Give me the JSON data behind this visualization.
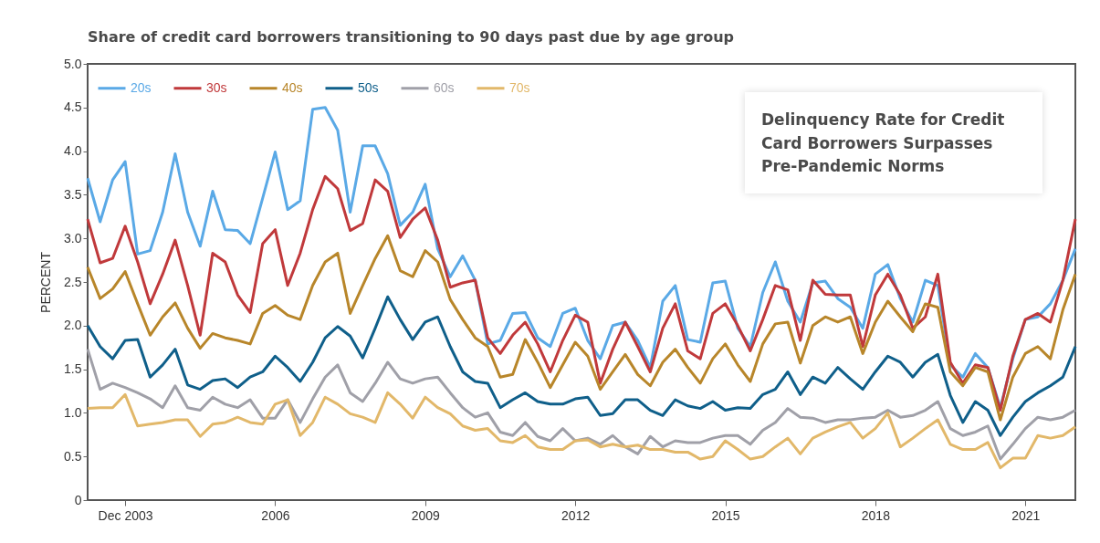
{
  "chart_data": {
    "type": "line",
    "title": "Share of credit card borrowers transitioning to 90 days past due by age group",
    "ylabel": "PERCENT",
    "legend": "top left",
    "xlim": [
      2002.25,
      2022.0
    ],
    "xticks": [
      {
        "value": 2003,
        "label": "Dec 2003"
      },
      2006,
      2009,
      2012,
      2015,
      2018,
      2021
    ],
    "ylim": [
      0,
      5
    ],
    "yticks": [
      0,
      0.5,
      {
        "value": 1,
        "label": "1.0"
      },
      1.5,
      {
        "value": 2,
        "label": "2.0"
      },
      2.5,
      {
        "value": 3,
        "label": "3.0"
      },
      3.5,
      {
        "value": 4,
        "label": "4.0"
      },
      4.5,
      {
        "value": 5,
        "label": "5.0"
      }
    ],
    "x": [
      2002.25,
      2002.5,
      2002.75,
      2003,
      2003.25,
      2003.5,
      2003.75,
      2004,
      2004.25,
      2004.5,
      2004.75,
      2005,
      2005.25,
      2005.5,
      2005.75,
      2006,
      2006.25,
      2006.5,
      2006.75,
      2007,
      2007.25,
      2007.5,
      2007.75,
      2008,
      2008.25,
      2008.5,
      2008.75,
      2009,
      2009.25,
      2009.5,
      2009.75,
      2010,
      2010.25,
      2010.5,
      2010.75,
      2011,
      2011.25,
      2011.5,
      2011.75,
      2012,
      2012.25,
      2012.5,
      2012.75,
      2013,
      2013.25,
      2013.5,
      2013.75,
      2014,
      2014.25,
      2014.5,
      2014.75,
      2015,
      2015.25,
      2015.5,
      2015.75,
      2016,
      2016.25,
      2016.5,
      2016.75,
      2017,
      2017.25,
      2017.5,
      2017.75,
      2018,
      2018.25,
      2018.5,
      2018.75,
      2019,
      2019.25,
      2019.5,
      2019.75,
      2020,
      2020.25,
      2020.5,
      2020.75,
      2021,
      2021.25,
      2021.5,
      2021.75,
      2022
    ],
    "series": [
      {
        "name": "20s",
        "color": "#5aa9e6",
        "values": [
          3.69,
          3.19,
          3.67,
          3.88,
          2.82,
          2.86,
          3.3,
          3.97,
          3.3,
          2.91,
          3.54,
          3.1,
          3.09,
          2.94,
          3.46,
          3.99,
          3.33,
          3.43,
          4.48,
          4.5,
          4.24,
          3.3,
          4.06,
          4.06,
          3.74,
          3.15,
          3.3,
          3.62,
          2.88,
          2.56,
          2.8,
          2.52,
          1.79,
          1.83,
          2.14,
          2.15,
          1.86,
          1.76,
          2.14,
          2.2,
          1.83,
          1.62,
          2.0,
          2.04,
          1.83,
          1.52,
          2.28,
          2.46,
          1.84,
          1.81,
          2.49,
          2.51,
          1.97,
          1.76,
          2.38,
          2.73,
          2.28,
          2.04,
          2.49,
          2.51,
          2.31,
          2.21,
          1.97,
          2.59,
          2.7,
          2.31,
          2.04,
          2.52,
          2.46,
          1.55,
          1.41,
          1.68,
          1.52,
          1.06,
          1.62,
          2.07,
          2.1,
          2.25,
          2.52,
          2.88
        ]
      },
      {
        "name": "30s",
        "color": "#c0393b",
        "values": [
          3.22,
          2.72,
          2.77,
          3.14,
          2.73,
          2.25,
          2.59,
          2.98,
          2.46,
          1.89,
          2.83,
          2.73,
          2.35,
          2.15,
          2.94,
          3.1,
          2.46,
          2.83,
          3.33,
          3.71,
          3.57,
          3.09,
          3.17,
          3.67,
          3.54,
          3.01,
          3.22,
          3.35,
          2.98,
          2.44,
          2.49,
          2.52,
          1.86,
          1.68,
          1.89,
          2.04,
          1.79,
          1.47,
          1.83,
          2.12,
          2.04,
          1.34,
          1.73,
          2.04,
          1.76,
          1.47,
          1.97,
          2.25,
          1.71,
          1.62,
          2.14,
          2.25,
          2.0,
          1.71,
          2.07,
          2.46,
          2.41,
          1.83,
          2.52,
          2.36,
          2.35,
          2.35,
          1.76,
          2.35,
          2.59,
          2.35,
          1.97,
          2.1,
          2.59,
          1.58,
          1.34,
          1.55,
          1.52,
          1.03,
          1.65,
          2.07,
          2.14,
          2.04,
          2.52,
          3.22
        ]
      },
      {
        "name": "40s",
        "color": "#b8862a",
        "values": [
          2.67,
          2.31,
          2.42,
          2.62,
          2.25,
          1.89,
          2.1,
          2.26,
          1.97,
          1.74,
          1.91,
          1.86,
          1.83,
          1.79,
          2.14,
          2.23,
          2.12,
          2.07,
          2.46,
          2.73,
          2.83,
          2.14,
          2.46,
          2.77,
          3.03,
          2.63,
          2.56,
          2.86,
          2.73,
          2.3,
          2.07,
          1.86,
          1.76,
          1.41,
          1.44,
          1.84,
          1.58,
          1.29,
          1.55,
          1.81,
          1.65,
          1.27,
          1.47,
          1.67,
          1.44,
          1.31,
          1.58,
          1.73,
          1.52,
          1.34,
          1.62,
          1.79,
          1.55,
          1.36,
          1.79,
          2.02,
          2.04,
          1.57,
          2.0,
          2.1,
          2.04,
          2.1,
          1.68,
          2.04,
          2.28,
          2.1,
          1.93,
          2.25,
          2.21,
          1.47,
          1.31,
          1.52,
          1.47,
          0.92,
          1.41,
          1.68,
          1.76,
          1.62,
          2.18,
          2.59
        ]
      },
      {
        "name": "50s",
        "color": "#0f5f8a",
        "values": [
          2.0,
          1.76,
          1.62,
          1.83,
          1.84,
          1.41,
          1.55,
          1.73,
          1.32,
          1.27,
          1.37,
          1.39,
          1.29,
          1.41,
          1.47,
          1.65,
          1.52,
          1.36,
          1.58,
          1.86,
          1.99,
          1.88,
          1.63,
          1.97,
          2.33,
          2.07,
          1.84,
          2.04,
          2.1,
          1.76,
          1.47,
          1.36,
          1.34,
          1.06,
          1.15,
          1.23,
          1.13,
          1.1,
          1.1,
          1.16,
          1.18,
          0.97,
          0.99,
          1.15,
          1.15,
          1.03,
          0.97,
          1.15,
          1.08,
          1.05,
          1.13,
          1.03,
          1.06,
          1.05,
          1.21,
          1.27,
          1.47,
          1.21,
          1.41,
          1.34,
          1.52,
          1.39,
          1.27,
          1.47,
          1.65,
          1.58,
          1.41,
          1.58,
          1.67,
          1.2,
          0.89,
          1.13,
          1.03,
          0.74,
          0.95,
          1.13,
          1.23,
          1.31,
          1.41,
          1.76
        ]
      },
      {
        "name": "60s",
        "color": "#a0a0a8",
        "values": [
          1.73,
          1.27,
          1.34,
          1.29,
          1.23,
          1.16,
          1.06,
          1.31,
          1.06,
          1.03,
          1.18,
          1.1,
          1.06,
          1.15,
          0.94,
          0.94,
          1.15,
          0.89,
          1.16,
          1.41,
          1.55,
          1.23,
          1.13,
          1.34,
          1.58,
          1.39,
          1.34,
          1.39,
          1.41,
          1.23,
          1.06,
          0.95,
          1.0,
          0.78,
          0.74,
          0.89,
          0.73,
          0.68,
          0.82,
          0.68,
          0.71,
          0.64,
          0.74,
          0.61,
          0.53,
          0.73,
          0.61,
          0.68,
          0.66,
          0.66,
          0.71,
          0.74,
          0.74,
          0.64,
          0.8,
          0.89,
          1.05,
          0.95,
          0.94,
          0.89,
          0.92,
          0.92,
          0.94,
          0.95,
          1.03,
          0.95,
          0.97,
          1.03,
          1.13,
          0.82,
          0.74,
          0.78,
          0.85,
          0.47,
          0.64,
          0.82,
          0.95,
          0.92,
          0.95,
          1.03
        ]
      },
      {
        "name": "70s",
        "color": "#e2b86a",
        "values": [
          1.05,
          1.06,
          1.06,
          1.21,
          0.85,
          0.87,
          0.89,
          0.92,
          0.92,
          0.73,
          0.87,
          0.89,
          0.95,
          0.89,
          0.87,
          1.1,
          1.15,
          0.74,
          0.89,
          1.18,
          1.1,
          0.99,
          0.95,
          0.89,
          1.23,
          1.1,
          0.94,
          1.18,
          1.06,
          0.99,
          0.85,
          0.8,
          0.82,
          0.68,
          0.66,
          0.74,
          0.61,
          0.58,
          0.58,
          0.68,
          0.69,
          0.61,
          0.64,
          0.61,
          0.63,
          0.58,
          0.58,
          0.55,
          0.55,
          0.47,
          0.5,
          0.68,
          0.58,
          0.47,
          0.5,
          0.61,
          0.71,
          0.53,
          0.71,
          0.78,
          0.84,
          0.89,
          0.71,
          0.82,
          1.0,
          0.61,
          0.71,
          0.82,
          0.92,
          0.64,
          0.58,
          0.58,
          0.66,
          0.37,
          0.48,
          0.48,
          0.74,
          0.71,
          0.74,
          0.84
        ]
      }
    ],
    "annotations": [
      "Delinquency Rate for Credit Card Borrowers Surpasses Pre-Pandemic Norms"
    ]
  }
}
